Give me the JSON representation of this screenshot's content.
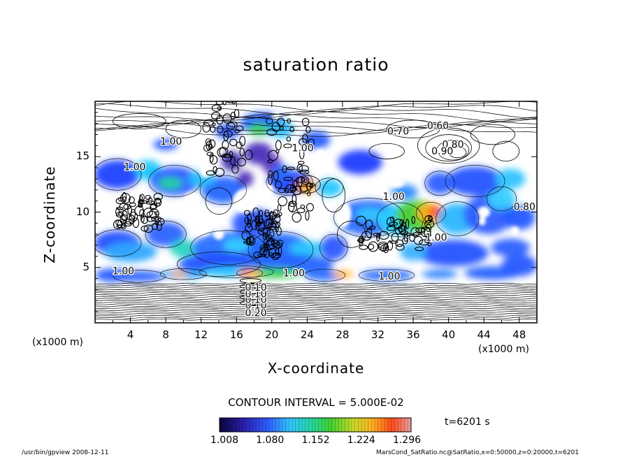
{
  "chart_data": {
    "type": "heatmap",
    "title": "saturation ratio",
    "xlabel": "X-coordinate",
    "ylabel": "Z-coordinate",
    "x_unit": "(x1000 m)",
    "z_unit": "(x1000 m)",
    "xlim": [
      0,
      50
    ],
    "ylim": [
      0,
      20
    ],
    "x_ticks": [
      "4",
      "8",
      "12",
      "16",
      "20",
      "24",
      "28",
      "32",
      "36",
      "40",
      "44",
      "48"
    ],
    "y_ticks": [
      "5",
      "10",
      "15"
    ],
    "contour_interval": "CONTOUR INTERVAL = 5.000E-02",
    "time": "t=6201 s",
    "colorbar_ticks": [
      "1.008",
      "1.080",
      "1.152",
      "1.224",
      "1.296"
    ],
    "colorbar_range": [
      1.008,
      1.296
    ],
    "contour_labels": [
      "0.20",
      "0.10",
      "0.10",
      "0.10",
      "0.10",
      "0.60",
      "0.70",
      "0.80",
      "0.90",
      "1.00",
      "1.00",
      "1.00",
      "1.00",
      "1.00",
      "1.00",
      "1.00",
      "1.00",
      "0.80"
    ]
  },
  "footer": {
    "left": "/usr/bin/gpview   2008-12-11",
    "right": "MarsCond_SatRatio.nc@SatRatio,x=0:50000,z=0:20000,t=6201"
  }
}
